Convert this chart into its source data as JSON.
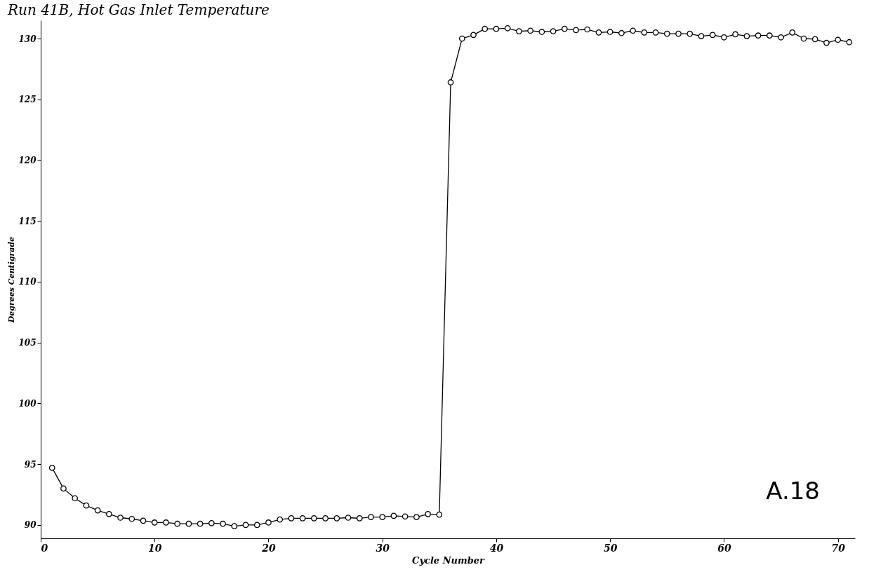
{
  "chart_data": {
    "type": "line",
    "title": "Run 41B, Hot Gas Inlet Temperature",
    "xlabel": "Cycle Number",
    "ylabel": "Degrees Centigrade",
    "annotations": [
      "A.18"
    ],
    "x": [
      1,
      2,
      3,
      4,
      5,
      6,
      7,
      8,
      9,
      10,
      11,
      12,
      13,
      14,
      15,
      16,
      17,
      18,
      19,
      20,
      21,
      22,
      23,
      24,
      25,
      26,
      27,
      28,
      29,
      30,
      31,
      32,
      33,
      34,
      35,
      36,
      37,
      38,
      39,
      40,
      41,
      42,
      43,
      44,
      45,
      46,
      47,
      48,
      49,
      50,
      51,
      52,
      53,
      54,
      55,
      56,
      57,
      58,
      59,
      60,
      61,
      62,
      63,
      64,
      65,
      66,
      67,
      68,
      69,
      70,
      71
    ],
    "series": [
      {
        "color": "#000000",
        "values": [
          94.7,
          93.0,
          92.2,
          91.6,
          91.2,
          90.9,
          90.6,
          90.5,
          90.35,
          90.2,
          90.2,
          90.1,
          90.1,
          90.1,
          90.15,
          90.1,
          89.9,
          90.0,
          90.0,
          90.2,
          90.45,
          90.55,
          90.55,
          90.55,
          90.55,
          90.55,
          90.6,
          90.55,
          90.65,
          90.65,
          90.75,
          90.7,
          90.65,
          90.9,
          90.85,
          126.4,
          130.0,
          130.3,
          130.8,
          130.8,
          130.85,
          130.6,
          130.65,
          130.55,
          130.6,
          130.8,
          130.7,
          130.75,
          130.5,
          130.55,
          130.45,
          130.65,
          130.5,
          130.5,
          130.4,
          130.4,
          130.4,
          130.2,
          130.3,
          130.1,
          130.35,
          130.2,
          130.25,
          130.25,
          130.1,
          130.5,
          130.0,
          129.95,
          129.65,
          129.9,
          129.7
        ]
      }
    ],
    "xlim": [
      0,
      71.5
    ],
    "ylim": [
      88.9,
      131.5
    ],
    "xticks": [
      0,
      10,
      20,
      30,
      40,
      50,
      60,
      70
    ],
    "yticks": [
      90,
      95,
      100,
      105,
      110,
      115,
      120,
      125,
      130
    ],
    "grid": false,
    "legend": false,
    "marker": "circle",
    "line_style": "solid"
  }
}
